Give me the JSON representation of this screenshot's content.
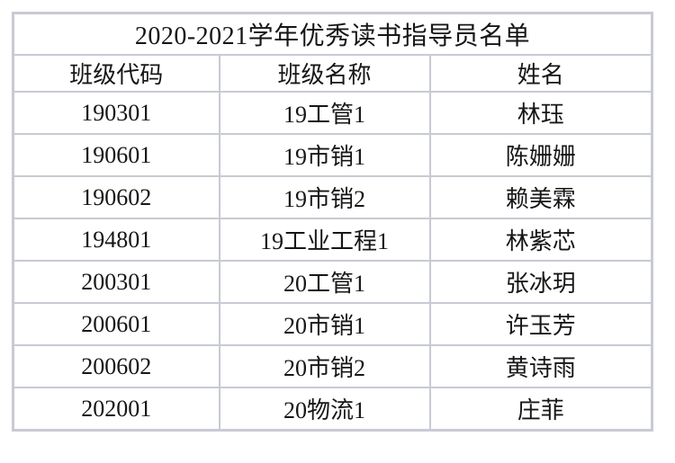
{
  "document": {
    "title": "2020-2021学年优秀读书指导员名单"
  },
  "table": {
    "headers": [
      "班级代码",
      "班级名称",
      "姓名"
    ],
    "rows": [
      [
        "190301",
        "19工管1",
        "林珏"
      ],
      [
        "190601",
        "19市销1",
        "陈姗姗"
      ],
      [
        "190602",
        "19市销2",
        "赖美霖"
      ],
      [
        "194801",
        "19工业工程1",
        "林紫芯"
      ],
      [
        "200301",
        "20工管1",
        "张冰玥"
      ],
      [
        "200601",
        "20市销1",
        "许玉芳"
      ],
      [
        "200602",
        "20市销2",
        "黄诗雨"
      ],
      [
        "202001",
        "20物流1",
        "庄菲"
      ]
    ]
  },
  "colors": {
    "border": "#c8cad4",
    "text": "#161616",
    "background": "#ffffff"
  }
}
